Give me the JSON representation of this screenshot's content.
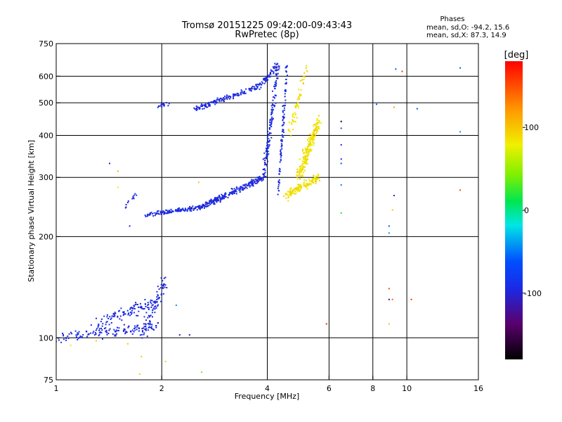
{
  "chart_data": {
    "type": "scatter",
    "title": "Tromsø 20151225 09:42:00-09:43:43",
    "subtitle": "RwPretec (8p)",
    "stats": {
      "header": "Phases",
      "line_o": "mean, sd,O: -94.2, 15.6",
      "line_x": "mean, sd,X:  87.3, 14.9"
    },
    "xlabel": "Frequency [MHz]",
    "ylabel": "Stationary phase Virtual Height [km]",
    "x_scale": "log",
    "y_scale": "log",
    "xlim": [
      1,
      16
    ],
    "ylim": [
      75,
      750
    ],
    "x_ticks": [
      {
        "v": 1,
        "label": "1"
      },
      {
        "v": 2,
        "label": "2"
      },
      {
        "v": 4,
        "label": "4"
      },
      {
        "v": 6,
        "label": "6"
      },
      {
        "v": 8,
        "label": "8"
      },
      {
        "v": 10,
        "label": "10"
      },
      {
        "v": 16,
        "label": "16"
      }
    ],
    "x_grid": [
      2,
      4,
      6,
      8,
      10
    ],
    "y_ticks": [
      {
        "v": 75,
        "label": "75"
      },
      {
        "v": 100,
        "label": "100"
      },
      {
        "v": 200,
        "label": "200"
      },
      {
        "v": 300,
        "label": "300"
      },
      {
        "v": 400,
        "label": "400"
      },
      {
        "v": 500,
        "label": "500"
      },
      {
        "v": 600,
        "label": "600"
      },
      {
        "v": 750,
        "label": "750"
      }
    ],
    "y_grid": [
      100,
      200,
      300,
      400,
      500,
      600
    ],
    "colorbar": {
      "label": "[deg]",
      "min": -180,
      "max": 180,
      "ticks": [
        {
          "v": 100,
          "label": "100"
        },
        {
          "v": 0,
          "label": "0"
        },
        {
          "v": -100,
          "label": "-100"
        }
      ]
    },
    "series": [
      {
        "mode": "O",
        "phase": -94,
        "segments": [
          {
            "f": [
              1.0,
              1.95
            ],
            "h": [
              100,
              108
            ],
            "n": 140,
            "sf": 0.03,
            "sh": 0.05
          },
          {
            "f": [
              1.3,
              1.95
            ],
            "h": [
              110,
              128
            ],
            "n": 110,
            "sf": 0.05,
            "sh": 0.07
          },
          {
            "f": [
              1.75,
              2.05
            ],
            "h": [
              100,
              150
            ],
            "n": 70,
            "sf": 0.02,
            "sh": 0.1
          },
          {
            "f": [
              1.8,
              2.6
            ],
            "h": [
              232,
              245
            ],
            "n": 140,
            "sf": 0.02,
            "sh": 0.02
          },
          {
            "f": [
              2.6,
              3.9
            ],
            "h": [
              245,
              300
            ],
            "n": 240,
            "sf": 0.02,
            "sh": 0.03
          },
          {
            "f": [
              3.9,
              4.3
            ],
            "h": [
              300,
              640
            ],
            "n": 140,
            "sf": 0.02,
            "sh": 0.04
          },
          {
            "f": [
              4.3,
              4.55
            ],
            "h": [
              270,
              640
            ],
            "n": 90,
            "sf": 0.01,
            "sh": 0.04
          },
          {
            "f": [
              2.5,
              3.8
            ],
            "h": [
              480,
              560
            ],
            "n": 150,
            "sf": 0.02,
            "sh": 0.03
          },
          {
            "f": [
              3.8,
              4.3
            ],
            "h": [
              560,
              650
            ],
            "n": 60,
            "sf": 0.02,
            "sh": 0.03
          },
          {
            "f": [
              1.95,
              2.15
            ],
            "h": [
              487,
              500
            ],
            "n": 16,
            "sf": 0.02,
            "sh": 0.02
          },
          {
            "f": [
              1.55,
              1.7
            ],
            "h": [
              240,
              270
            ],
            "n": 12,
            "sf": 0.02,
            "sh": 0.04
          }
        ]
      },
      {
        "mode": "X",
        "phase": 87,
        "segments": [
          {
            "f": [
              4.55,
              5.6
            ],
            "h": [
              265,
              300
            ],
            "n": 150,
            "sf": 0.03,
            "sh": 0.04
          },
          {
            "f": [
              4.9,
              5.6
            ],
            "h": [
              300,
              440
            ],
            "n": 230,
            "sf": 0.03,
            "sh": 0.06
          },
          {
            "f": [
              4.6,
              5.2
            ],
            "h": [
              400,
              640
            ],
            "n": 60,
            "sf": 0.02,
            "sh": 0.06
          }
        ]
      }
    ],
    "scattered_points": [
      [
        6.5,
        440,
        -180
      ],
      [
        6.5,
        420,
        -60
      ],
      [
        6.5,
        375,
        -100
      ],
      [
        6.5,
        340,
        -100
      ],
      [
        6.5,
        330,
        -60
      ],
      [
        6.5,
        285,
        -50
      ],
      [
        6.5,
        235,
        20
      ],
      [
        5.9,
        110,
        170
      ],
      [
        8.2,
        495,
        -60
      ],
      [
        8.9,
        215,
        -60
      ],
      [
        8.9,
        205,
        -40
      ],
      [
        9.1,
        240,
        100
      ],
      [
        9.3,
        630,
        -60
      ],
      [
        9.7,
        620,
        160
      ],
      [
        9.2,
        485,
        120
      ],
      [
        9.2,
        265,
        -100
      ],
      [
        10.7,
        480,
        -60
      ],
      [
        14.2,
        635,
        -60
      ],
      [
        14.2,
        410,
        -40
      ],
      [
        14.2,
        275,
        150
      ],
      [
        8.9,
        130,
        -120
      ],
      [
        9.1,
        130,
        140
      ],
      [
        10.3,
        130,
        160
      ],
      [
        8.9,
        110,
        100
      ],
      [
        8.9,
        140,
        150
      ],
      [
        1.42,
        330,
        -100
      ],
      [
        1.5,
        280,
        80
      ],
      [
        1.5,
        313,
        110
      ],
      [
        1.62,
        215,
        -100
      ],
      [
        2.55,
        290,
        100
      ],
      [
        2.6,
        79,
        40
      ],
      [
        1.73,
        78,
        100
      ],
      [
        1.75,
        88,
        100
      ],
      [
        1.6,
        96,
        100
      ],
      [
        1.3,
        98,
        100
      ],
      [
        2.2,
        125,
        -40
      ],
      [
        2.05,
        85,
        60
      ],
      [
        2.25,
        102,
        -120
      ],
      [
        2.4,
        102,
        -120
      ],
      [
        1.1,
        95,
        80
      ]
    ]
  }
}
